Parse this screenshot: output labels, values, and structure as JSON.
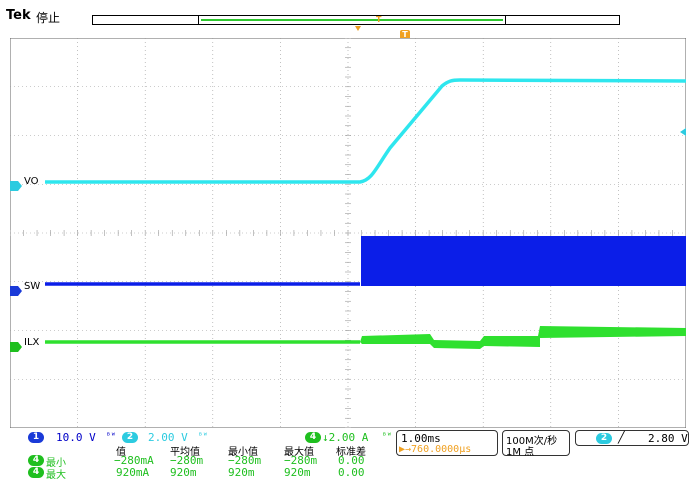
{
  "header": {
    "brand": "Tek",
    "status": "停止",
    "trigger_marker": "T",
    "record_marker": "T"
  },
  "traces": {
    "ch1": {
      "label": "VO",
      "color": "#2ee6ee",
      "badge": "1"
    },
    "ch2": {
      "label": "SW",
      "color": "#0b1ee8",
      "badge": "2"
    },
    "ch3": {
      "label": "ILX",
      "color": "#2fe02f",
      "badge": "4"
    }
  },
  "footer": {
    "ch1": {
      "badge": "1",
      "scale": "10.0 V",
      "bw": "ᴮᵂ"
    },
    "ch2": {
      "badge": "2",
      "scale": "2.00 V",
      "bw": "ᴮᵂ"
    },
    "ch4": {
      "badge": "4",
      "scale": "↓2.00 A",
      "bw": "ᴮᵂ"
    },
    "timebase": "1.00ms",
    "trigger_pos": "▶→760.0000µs",
    "sample_rate": "100M次/秒",
    "record_length": "1M 点",
    "trigger_src": "2",
    "trigger_slope": "╱",
    "trigger_level": "2.80 V",
    "meas_headers": [
      "值",
      "平均值",
      "最小值",
      "最大值",
      "标准差"
    ],
    "meas_rows": [
      {
        "badge": "4",
        "name": "最小",
        "values": [
          "−280mA",
          "−280m",
          "−280m",
          "−280m",
          "0.00"
        ]
      },
      {
        "badge": "4",
        "name": "最大",
        "values": [
          "920mA",
          "920m",
          "920m",
          "920m",
          "0.00"
        ]
      }
    ]
  },
  "colors": {
    "ch1_badge": "#1a3ad8",
    "ch2_badge": "#2ccbe0",
    "ch4_badge": "#1fbf1f",
    "trigger_orange": "#f0a020",
    "grid": "#9a9a9a"
  }
}
